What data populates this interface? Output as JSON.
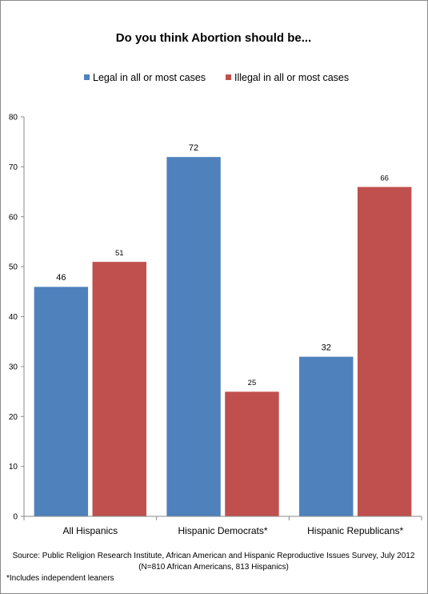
{
  "chart_data": {
    "type": "bar",
    "title": "Do you think Abortion should be...",
    "categories": [
      "All Hispanics",
      "Hispanic Democrats*",
      "Hispanic Republicans*"
    ],
    "series": [
      {
        "name": "Legal in all or most cases",
        "color": "#4f81bd",
        "values": [
          46,
          72,
          32
        ]
      },
      {
        "name": "Illegal in all or most cases",
        "color": "#c0504d",
        "values": [
          51,
          25,
          66
        ]
      }
    ],
    "ylim": [
      0,
      80
    ],
    "yticks": [
      0,
      10,
      20,
      30,
      40,
      50,
      60,
      70,
      80
    ],
    "grid": false,
    "legend_position": "top",
    "source": "Source: Public Religion Research Institute, African American and Hispanic Reproductive Issues Survey, July 2012",
    "source_line2": "(N=810 African Americans, 813 Hispanics)",
    "footnote": "*Includes independent leaners"
  }
}
